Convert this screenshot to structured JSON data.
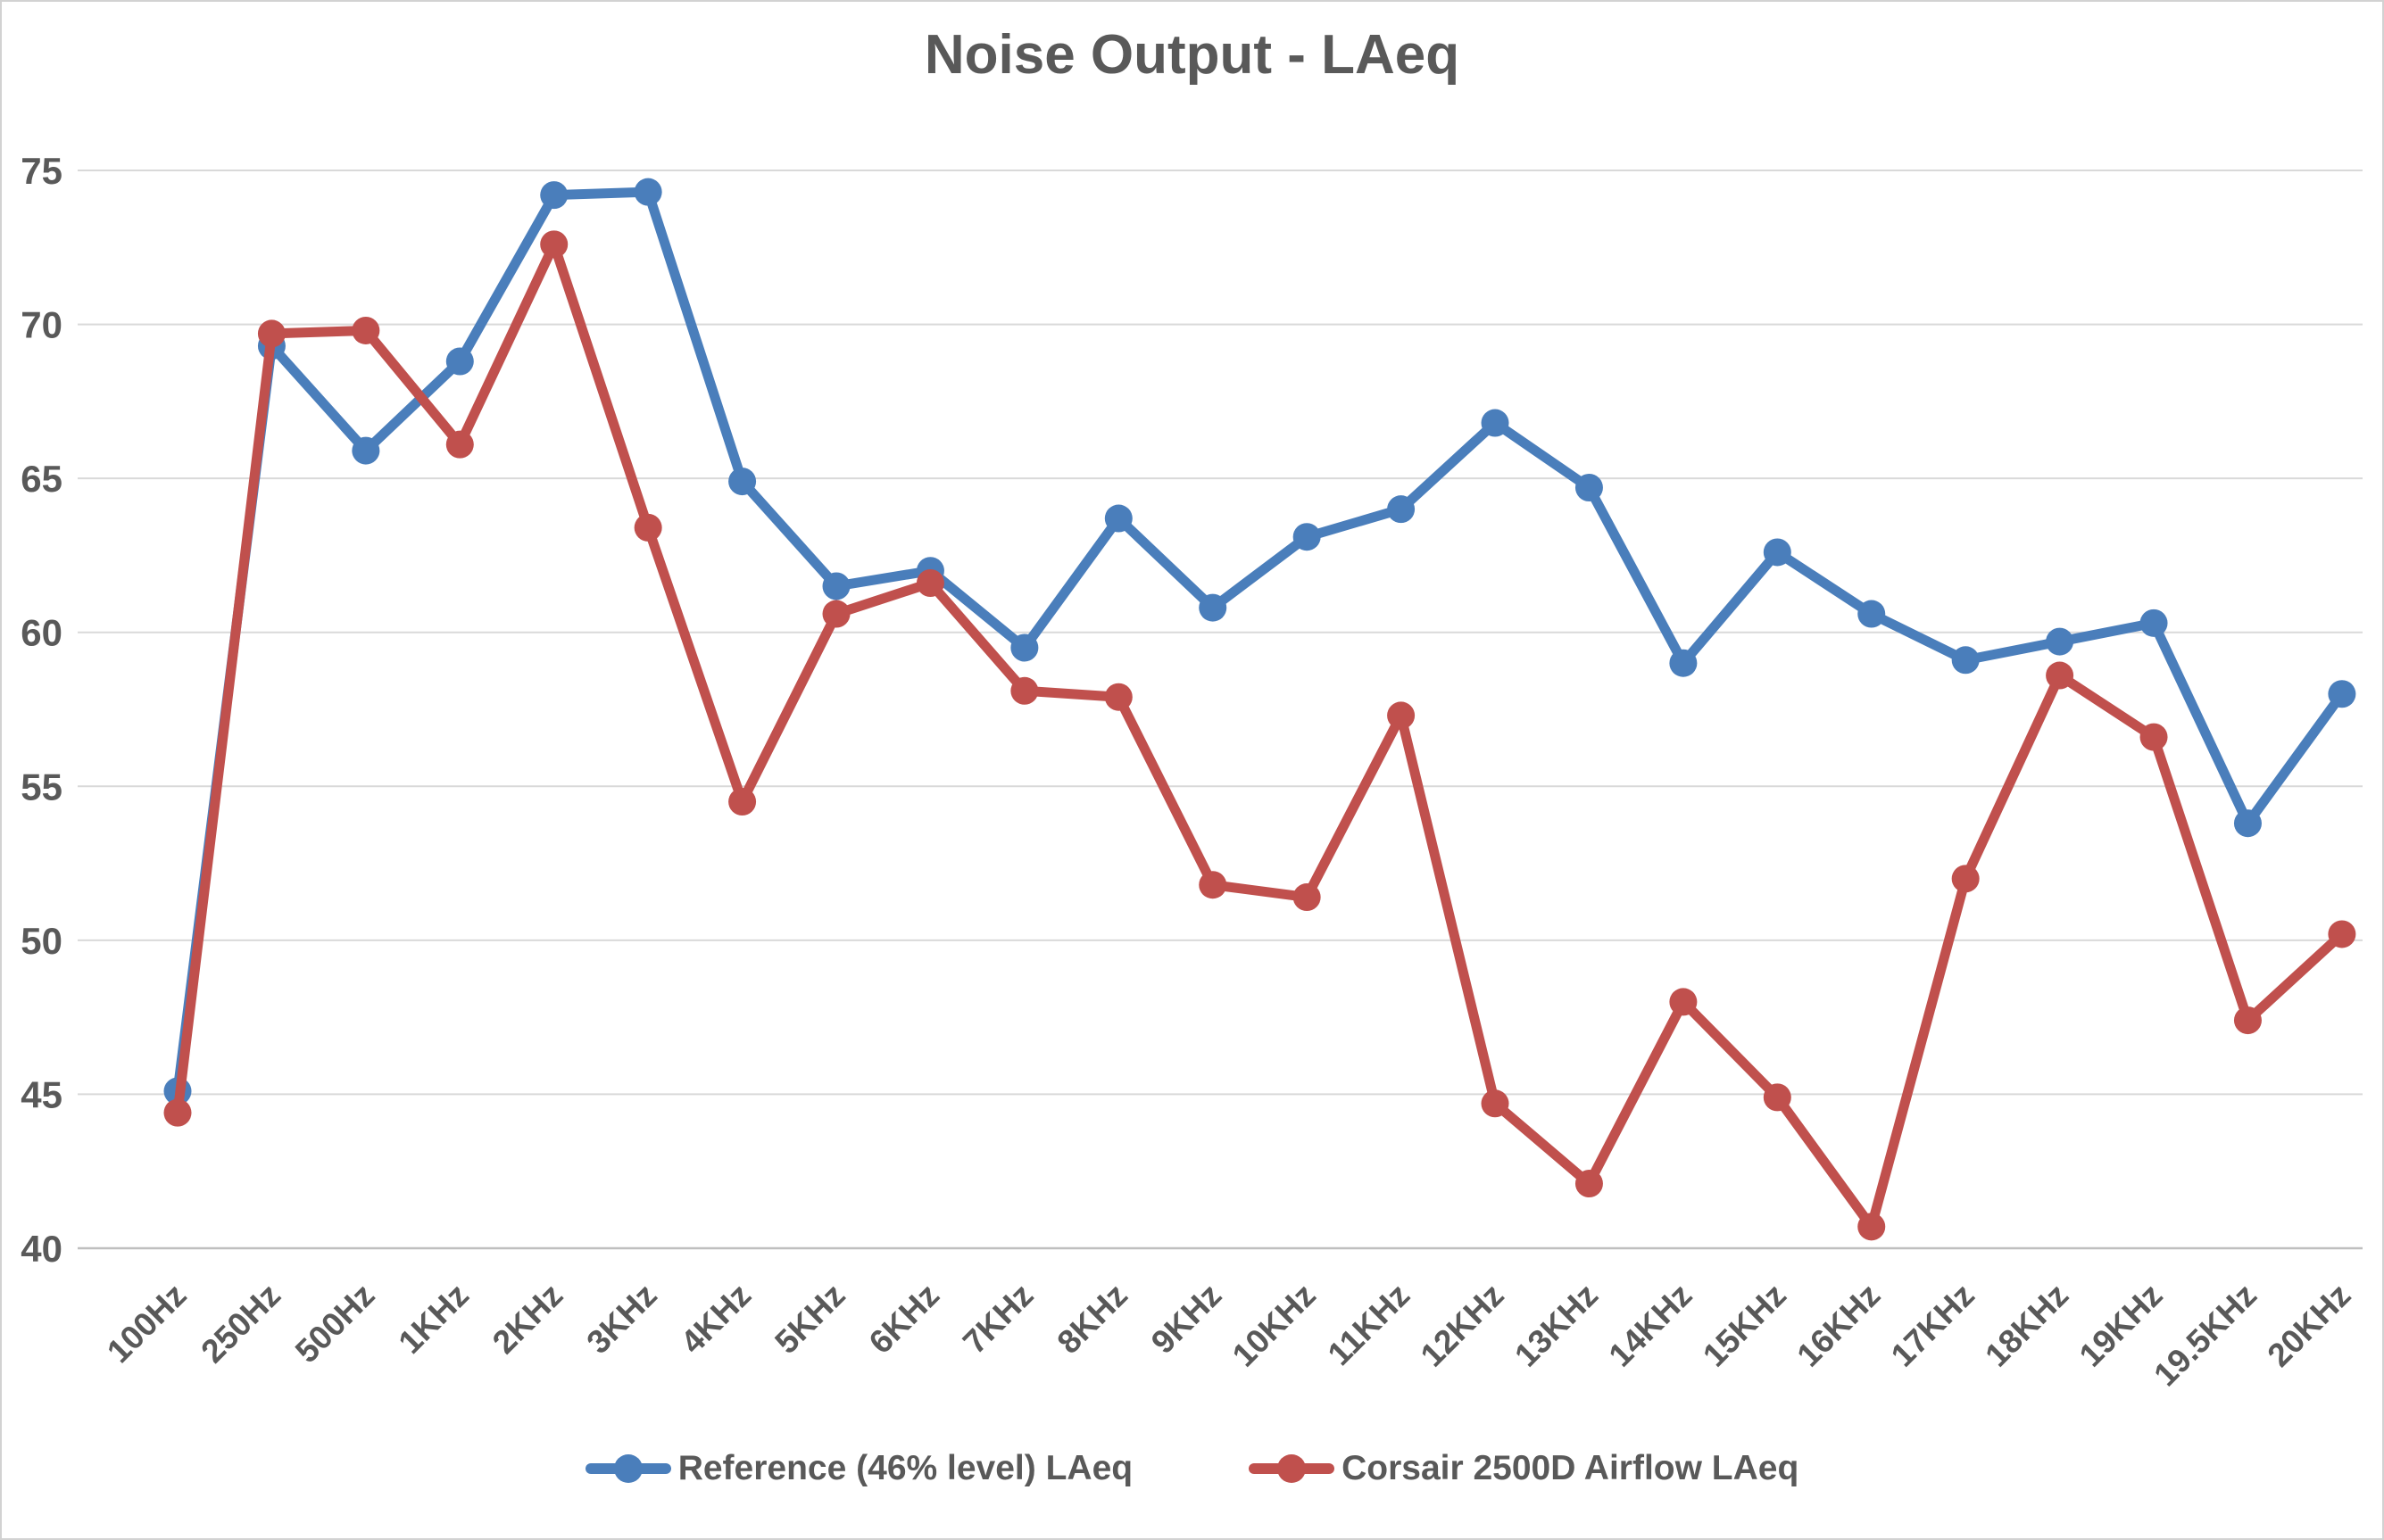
{
  "window": {
    "background": "#ffffff",
    "border_color": "#d2d2d2",
    "text_color": "#595959",
    "gridline_color": "#d9d9d9",
    "axis_line_color": "#bfbfbf"
  },
  "chart_data": {
    "type": "line",
    "title": "Noise Output - LAeq",
    "categories": [
      "100Hz",
      "250Hz",
      "500Hz",
      "1KHz",
      "2KHz",
      "3KHz",
      "4KHz",
      "5KHz",
      "6KHz",
      "7KHz",
      "8KHz",
      "9KHz",
      "10KHz",
      "11KHz",
      "12KHz",
      "13KHz",
      "14KHz",
      "15KHz",
      "16KHz",
      "17KHz",
      "18KHz",
      "19KHz",
      "19.5KHz",
      "20KHz"
    ],
    "series": [
      {
        "name": "Reference (46% level) LAeq",
        "color": "#4a7ebb",
        "values": [
          45.1,
          69.3,
          65.9,
          68.8,
          74.2,
          74.3,
          64.9,
          61.5,
          62.0,
          59.5,
          63.7,
          60.8,
          63.1,
          64.0,
          66.8,
          64.7,
          59.0,
          62.6,
          60.6,
          59.1,
          59.7,
          60.3,
          53.8,
          58.0
        ]
      },
      {
        "name": "Corsair 2500D Airflow LAeq",
        "color": "#c0504d",
        "values": [
          44.4,
          69.7,
          69.8,
          66.1,
          72.6,
          63.4,
          54.5,
          60.6,
          61.6,
          58.1,
          57.9,
          51.8,
          51.4,
          57.3,
          44.7,
          42.1,
          48.0,
          44.9,
          40.7,
          52.0,
          58.6,
          56.6,
          47.4,
          50.2
        ]
      }
    ],
    "xlabel": "",
    "ylabel": "",
    "ylim": [
      40,
      75
    ],
    "ytick_step": 5,
    "ytick_labels": [
      "40",
      "45",
      "50",
      "55",
      "60",
      "65",
      "70",
      "75"
    ],
    "grid": true,
    "legend_position": "bottom"
  }
}
